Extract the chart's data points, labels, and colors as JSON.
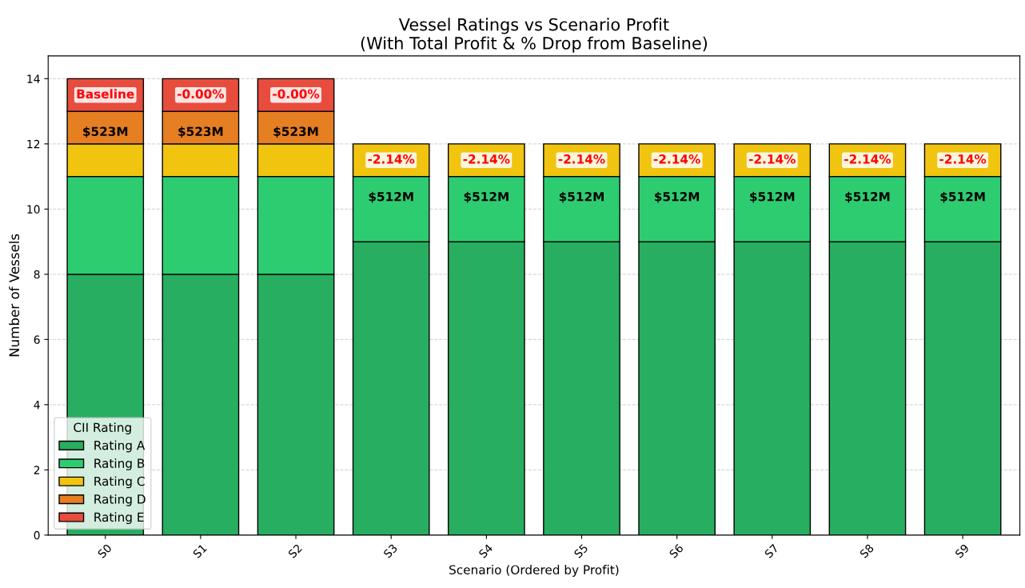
{
  "chart_data": {
    "type": "bar",
    "stacked": true,
    "title": "Vessel Ratings vs Scenario Profit\n(With Total Profit & % Drop from Baseline)",
    "xlabel": "Scenario (Ordered by Profit)",
    "ylabel": "Number of Vessels",
    "legend_title": "CII Rating",
    "legend": "bottom left",
    "grid": "y",
    "categories": [
      "S0",
      "S1",
      "S2",
      "S3",
      "S4",
      "S5",
      "S6",
      "S7",
      "S8",
      "S9"
    ],
    "series": [
      {
        "name": "Rating A",
        "color": "#27ae60",
        "values": [
          8,
          8,
          8,
          9,
          9,
          9,
          9,
          9,
          9,
          9
        ]
      },
      {
        "name": "Rating B",
        "color": "#2ecc71",
        "values": [
          3,
          3,
          3,
          2,
          2,
          2,
          2,
          2,
          2,
          2
        ]
      },
      {
        "name": "Rating C",
        "color": "#f1c40f",
        "values": [
          1,
          1,
          1,
          1,
          1,
          1,
          1,
          1,
          1,
          1
        ]
      },
      {
        "name": "Rating D",
        "color": "#e67e22",
        "values": [
          1,
          1,
          1,
          0,
          0,
          0,
          0,
          0,
          0,
          0
        ]
      },
      {
        "name": "Rating E",
        "color": "#e74c3c",
        "values": [
          1,
          1,
          1,
          0,
          0,
          0,
          0,
          0,
          0,
          0
        ]
      }
    ],
    "ylim": [
      0,
      14.7
    ],
    "yticks": [
      0,
      2,
      4,
      6,
      8,
      10,
      12,
      14
    ],
    "annotations": [
      "$523M",
      "$523M",
      "$523M",
      "$512M",
      "$512M",
      "$512M",
      "$512M",
      "$512M",
      "$512M",
      "$512M",
      "Baseline",
      "-0.00%",
      "-0.00%",
      "-2.14%",
      "-2.14%",
      "-2.14%",
      "-2.14%",
      "-2.14%",
      "-2.14%",
      "-2.14%"
    ]
  }
}
